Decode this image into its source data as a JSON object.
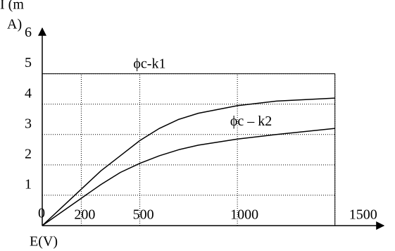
{
  "chart_data": {
    "type": "line",
    "y_label_lines": [
      "I (m",
      "A)"
    ],
    "x_label": "E(V)",
    "annotations": [
      {
        "text": "ϕc-k1",
        "x": 550,
        "y": 5.3
      },
      {
        "text": "ϕc – k2",
        "x": 1070,
        "y": 3.4
      }
    ],
    "x": [
      0,
      100,
      200,
      300,
      400,
      500,
      600,
      700,
      800,
      1000,
      1200,
      1500
    ],
    "series": [
      {
        "name": "ϕc-k1",
        "color": "#000000",
        "values": [
          0,
          0.6,
          1.2,
          1.8,
          2.3,
          2.8,
          3.2,
          3.5,
          3.7,
          3.95,
          4.1,
          4.2
        ]
      },
      {
        "name": "ϕc – k2",
        "color": "#000000",
        "values": [
          0,
          0.45,
          0.9,
          1.35,
          1.75,
          2.05,
          2.3,
          2.5,
          2.65,
          2.85,
          3.0,
          3.2
        ]
      }
    ],
    "xlim": [
      0,
      1750
    ],
    "ylim": [
      0,
      6.5
    ],
    "xticks": [
      200,
      500,
      1000,
      1500
    ],
    "yticks": [
      0,
      1,
      2,
      3,
      4,
      5,
      6
    ],
    "grid": true
  }
}
